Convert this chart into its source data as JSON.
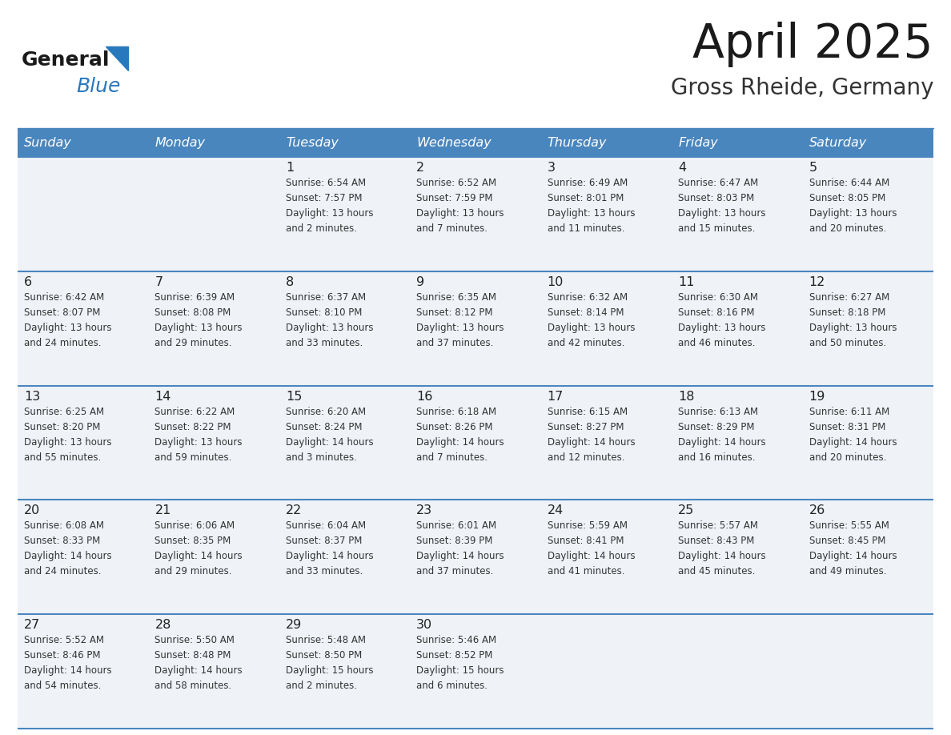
{
  "title": "April 2025",
  "subtitle": "Gross Rheide, Germany",
  "header_bg": "#4a86be",
  "header_text_color": "#ffffff",
  "days_of_week": [
    "Sunday",
    "Monday",
    "Tuesday",
    "Wednesday",
    "Thursday",
    "Friday",
    "Saturday"
  ],
  "row_bg": "#eff3f8",
  "cell_text_color": "#333333",
  "day_number_color": "#222222",
  "divider_color": "#4a86be",
  "logo_general_color": "#1a1a1a",
  "logo_blue_color": "#2878be",
  "weeks": [
    {
      "days": [
        {
          "date": null,
          "info": null
        },
        {
          "date": null,
          "info": null
        },
        {
          "date": 1,
          "info": "Sunrise: 6:54 AM\nSunset: 7:57 PM\nDaylight: 13 hours\nand 2 minutes."
        },
        {
          "date": 2,
          "info": "Sunrise: 6:52 AM\nSunset: 7:59 PM\nDaylight: 13 hours\nand 7 minutes."
        },
        {
          "date": 3,
          "info": "Sunrise: 6:49 AM\nSunset: 8:01 PM\nDaylight: 13 hours\nand 11 minutes."
        },
        {
          "date": 4,
          "info": "Sunrise: 6:47 AM\nSunset: 8:03 PM\nDaylight: 13 hours\nand 15 minutes."
        },
        {
          "date": 5,
          "info": "Sunrise: 6:44 AM\nSunset: 8:05 PM\nDaylight: 13 hours\nand 20 minutes."
        }
      ]
    },
    {
      "days": [
        {
          "date": 6,
          "info": "Sunrise: 6:42 AM\nSunset: 8:07 PM\nDaylight: 13 hours\nand 24 minutes."
        },
        {
          "date": 7,
          "info": "Sunrise: 6:39 AM\nSunset: 8:08 PM\nDaylight: 13 hours\nand 29 minutes."
        },
        {
          "date": 8,
          "info": "Sunrise: 6:37 AM\nSunset: 8:10 PM\nDaylight: 13 hours\nand 33 minutes."
        },
        {
          "date": 9,
          "info": "Sunrise: 6:35 AM\nSunset: 8:12 PM\nDaylight: 13 hours\nand 37 minutes."
        },
        {
          "date": 10,
          "info": "Sunrise: 6:32 AM\nSunset: 8:14 PM\nDaylight: 13 hours\nand 42 minutes."
        },
        {
          "date": 11,
          "info": "Sunrise: 6:30 AM\nSunset: 8:16 PM\nDaylight: 13 hours\nand 46 minutes."
        },
        {
          "date": 12,
          "info": "Sunrise: 6:27 AM\nSunset: 8:18 PM\nDaylight: 13 hours\nand 50 minutes."
        }
      ]
    },
    {
      "days": [
        {
          "date": 13,
          "info": "Sunrise: 6:25 AM\nSunset: 8:20 PM\nDaylight: 13 hours\nand 55 minutes."
        },
        {
          "date": 14,
          "info": "Sunrise: 6:22 AM\nSunset: 8:22 PM\nDaylight: 13 hours\nand 59 minutes."
        },
        {
          "date": 15,
          "info": "Sunrise: 6:20 AM\nSunset: 8:24 PM\nDaylight: 14 hours\nand 3 minutes."
        },
        {
          "date": 16,
          "info": "Sunrise: 6:18 AM\nSunset: 8:26 PM\nDaylight: 14 hours\nand 7 minutes."
        },
        {
          "date": 17,
          "info": "Sunrise: 6:15 AM\nSunset: 8:27 PM\nDaylight: 14 hours\nand 12 minutes."
        },
        {
          "date": 18,
          "info": "Sunrise: 6:13 AM\nSunset: 8:29 PM\nDaylight: 14 hours\nand 16 minutes."
        },
        {
          "date": 19,
          "info": "Sunrise: 6:11 AM\nSunset: 8:31 PM\nDaylight: 14 hours\nand 20 minutes."
        }
      ]
    },
    {
      "days": [
        {
          "date": 20,
          "info": "Sunrise: 6:08 AM\nSunset: 8:33 PM\nDaylight: 14 hours\nand 24 minutes."
        },
        {
          "date": 21,
          "info": "Sunrise: 6:06 AM\nSunset: 8:35 PM\nDaylight: 14 hours\nand 29 minutes."
        },
        {
          "date": 22,
          "info": "Sunrise: 6:04 AM\nSunset: 8:37 PM\nDaylight: 14 hours\nand 33 minutes."
        },
        {
          "date": 23,
          "info": "Sunrise: 6:01 AM\nSunset: 8:39 PM\nDaylight: 14 hours\nand 37 minutes."
        },
        {
          "date": 24,
          "info": "Sunrise: 5:59 AM\nSunset: 8:41 PM\nDaylight: 14 hours\nand 41 minutes."
        },
        {
          "date": 25,
          "info": "Sunrise: 5:57 AM\nSunset: 8:43 PM\nDaylight: 14 hours\nand 45 minutes."
        },
        {
          "date": 26,
          "info": "Sunrise: 5:55 AM\nSunset: 8:45 PM\nDaylight: 14 hours\nand 49 minutes."
        }
      ]
    },
    {
      "days": [
        {
          "date": 27,
          "info": "Sunrise: 5:52 AM\nSunset: 8:46 PM\nDaylight: 14 hours\nand 54 minutes."
        },
        {
          "date": 28,
          "info": "Sunrise: 5:50 AM\nSunset: 8:48 PM\nDaylight: 14 hours\nand 58 minutes."
        },
        {
          "date": 29,
          "info": "Sunrise: 5:48 AM\nSunset: 8:50 PM\nDaylight: 15 hours\nand 2 minutes."
        },
        {
          "date": 30,
          "info": "Sunrise: 5:46 AM\nSunset: 8:52 PM\nDaylight: 15 hours\nand 6 minutes."
        },
        {
          "date": null,
          "info": null
        },
        {
          "date": null,
          "info": null
        },
        {
          "date": null,
          "info": null
        }
      ]
    }
  ]
}
